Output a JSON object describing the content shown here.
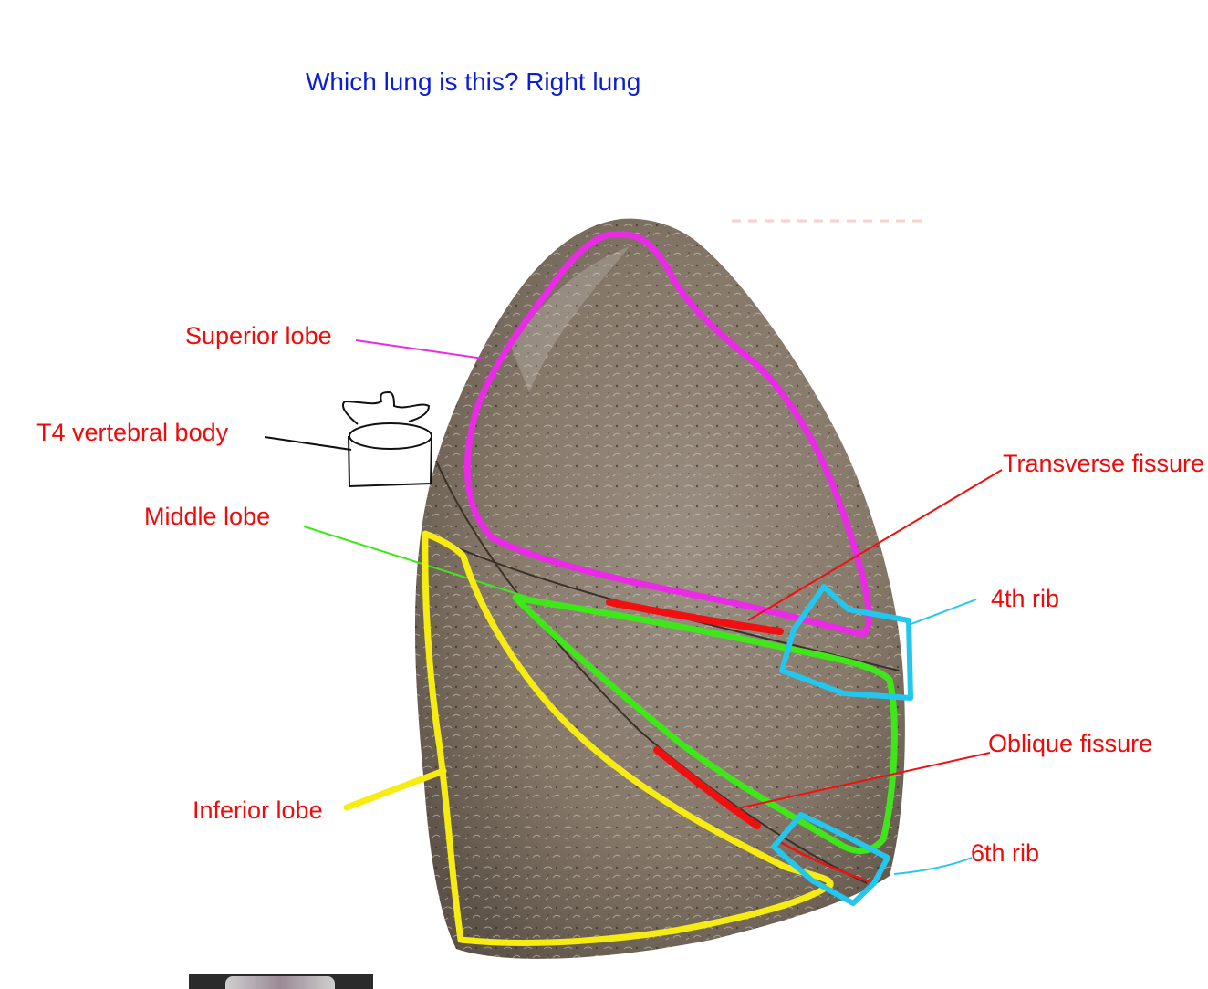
{
  "question": "Which lung is this? Right lung",
  "labels": {
    "superior_lobe": "Superior lobe",
    "t4_vertebral_body": "T4 vertebral body",
    "middle_lobe": "Middle lobe",
    "inferior_lobe": "Inferior lobe",
    "transverse_fissure": "Transverse fissure",
    "fourth_rib": "4th rib",
    "oblique_fissure": "Oblique fissure",
    "sixth_rib": "6th rib"
  },
  "colors": {
    "question_text": "#0a1ed8",
    "label_text": "#f00a0a",
    "superior_lobe_outline": "#e92be6",
    "middle_lobe_outline": "#3ee61a",
    "inferior_lobe_outline": "#f6ec13",
    "rib_outline": "#23c6ec",
    "fissure_highlight": "#f01010",
    "vertebra_sketch": "#111111",
    "lung_tissue": "#8a7d70"
  }
}
